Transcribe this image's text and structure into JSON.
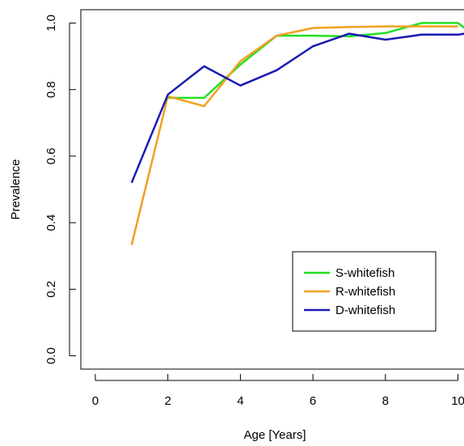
{
  "chart_data": {
    "type": "line",
    "title": "",
    "xlabel": "Age [Years]",
    "ylabel": "Prevalence",
    "xlim": [
      -0.4,
      10.3
    ],
    "ylim": [
      -0.04,
      1.04
    ],
    "xticks": [
      0,
      2,
      4,
      6,
      8,
      10
    ],
    "xtick_labels": [
      "0",
      "2",
      "4",
      "6",
      "8",
      "10"
    ],
    "yticks": [
      0.0,
      0.2,
      0.4,
      0.6,
      0.8,
      1.0
    ],
    "ytick_labels": [
      "0.0",
      "0.2",
      "0.4",
      "0.6",
      "0.8",
      "1.0"
    ],
    "grid": false,
    "legend_position": "bottom-right",
    "series": [
      {
        "name": "S-whitefish",
        "color": "#22e022",
        "x": [
          2,
          3,
          4,
          5,
          6,
          7,
          8,
          9,
          10,
          10.3
        ],
        "y": [
          0.775,
          0.775,
          0.875,
          0.962,
          0.962,
          0.96,
          0.97,
          1.0,
          1.0,
          0.975
        ]
      },
      {
        "name": "R-whitefish",
        "color": "#f0a020",
        "x": [
          1,
          2,
          3,
          4,
          5,
          6,
          7,
          8,
          9,
          10
        ],
        "y": [
          0.333,
          0.78,
          0.75,
          0.885,
          0.962,
          0.985,
          0.988,
          0.99,
          0.99,
          0.99
        ]
      },
      {
        "name": "D-whitefish",
        "color": "#1a1ab4",
        "x": [
          1,
          2,
          3,
          4,
          5,
          6,
          7,
          8,
          9,
          10,
          10.3
        ],
        "y": [
          0.52,
          0.785,
          0.87,
          0.812,
          0.858,
          0.93,
          0.968,
          0.95,
          0.965,
          0.965,
          0.97
        ]
      }
    ]
  }
}
